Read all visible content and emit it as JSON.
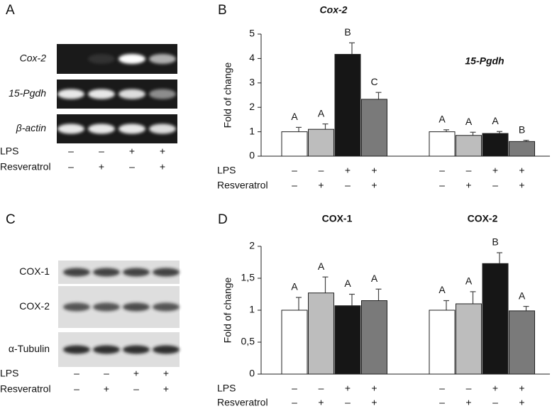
{
  "gels": [
    {
      "panel": "A",
      "italic": true,
      "rows": [
        "Cox-2",
        "15-Pgdh",
        "β-actin"
      ],
      "treatments": [
        {
          "label": "LPS",
          "signs": [
            "–",
            "–",
            "+",
            "+"
          ]
        },
        {
          "label": "Resveratrol",
          "signs": [
            "–",
            "+",
            "–",
            "+"
          ]
        }
      ]
    },
    {
      "panel": "C",
      "italic": false,
      "rows": [
        "COX-1",
        "COX-2",
        "α-Tubulin"
      ],
      "treatments": [
        {
          "label": "LPS",
          "signs": [
            "–",
            "–",
            "+",
            "+"
          ]
        },
        {
          "label": "Resveratrol",
          "signs": [
            "–",
            "+",
            "–",
            "+"
          ]
        }
      ]
    }
  ],
  "chart_data": [
    {
      "type": "bar",
      "panel": "B",
      "categories": [
        "Cox-2",
        "15-Pgdh"
      ],
      "title_italic": true,
      "ylabel": "Fold of change",
      "ylim": [
        0,
        5
      ],
      "yticks": [
        0,
        1,
        2,
        3,
        4,
        5
      ],
      "series": [
        {
          "color": "#ffffff",
          "values": [
            1.0,
            1.0
          ],
          "errors": [
            0.18,
            0.08
          ],
          "letters": [
            "A",
            "A"
          ]
        },
        {
          "color": "#bdbdbd",
          "values": [
            1.1,
            0.85
          ],
          "errors": [
            0.22,
            0.13
          ],
          "letters": [
            "A",
            "A"
          ]
        },
        {
          "color": "#161616",
          "values": [
            4.17,
            0.93
          ],
          "errors": [
            0.47,
            0.08
          ],
          "letters": [
            "B",
            "A"
          ]
        },
        {
          "color": "#7a7a7a",
          "values": [
            2.33,
            0.6
          ],
          "errors": [
            0.28,
            0.05
          ],
          "letters": [
            "C",
            "B"
          ]
        }
      ],
      "treatments": [
        {
          "label": "LPS",
          "signs": [
            "–",
            "–",
            "+",
            "+"
          ]
        },
        {
          "label": "Resveratrol",
          "signs": [
            "–",
            "+",
            "–",
            "+"
          ]
        }
      ]
    },
    {
      "type": "bar",
      "panel": "D",
      "categories": [
        "COX-1",
        "COX-2"
      ],
      "title_italic": false,
      "ylabel": "Fold of change",
      "ylim": [
        0,
        2
      ],
      "yticks": [
        0,
        {
          "value": 0.5,
          "label": "0,5"
        },
        1,
        {
          "value": 1.5,
          "label": "1,5"
        },
        2
      ],
      "series": [
        {
          "color": "#ffffff",
          "values": [
            1.0,
            1.0
          ],
          "errors": [
            0.2,
            0.15
          ],
          "letters": [
            "A",
            "A"
          ]
        },
        {
          "color": "#bdbdbd",
          "values": [
            1.27,
            1.1
          ],
          "errors": [
            0.25,
            0.19
          ],
          "letters": [
            "A",
            "A"
          ]
        },
        {
          "color": "#161616",
          "values": [
            1.07,
            1.73
          ],
          "errors": [
            0.18,
            0.17
          ],
          "letters": [
            "A",
            "B"
          ]
        },
        {
          "color": "#7a7a7a",
          "values": [
            1.15,
            0.99
          ],
          "errors": [
            0.18,
            0.07
          ],
          "letters": [
            "A",
            "A"
          ]
        }
      ],
      "treatments": [
        {
          "label": "LPS",
          "signs": [
            "–",
            "–",
            "+",
            "+"
          ]
        },
        {
          "label": "Resveratrol",
          "signs": [
            "–",
            "+",
            "–",
            "+"
          ]
        }
      ]
    }
  ]
}
